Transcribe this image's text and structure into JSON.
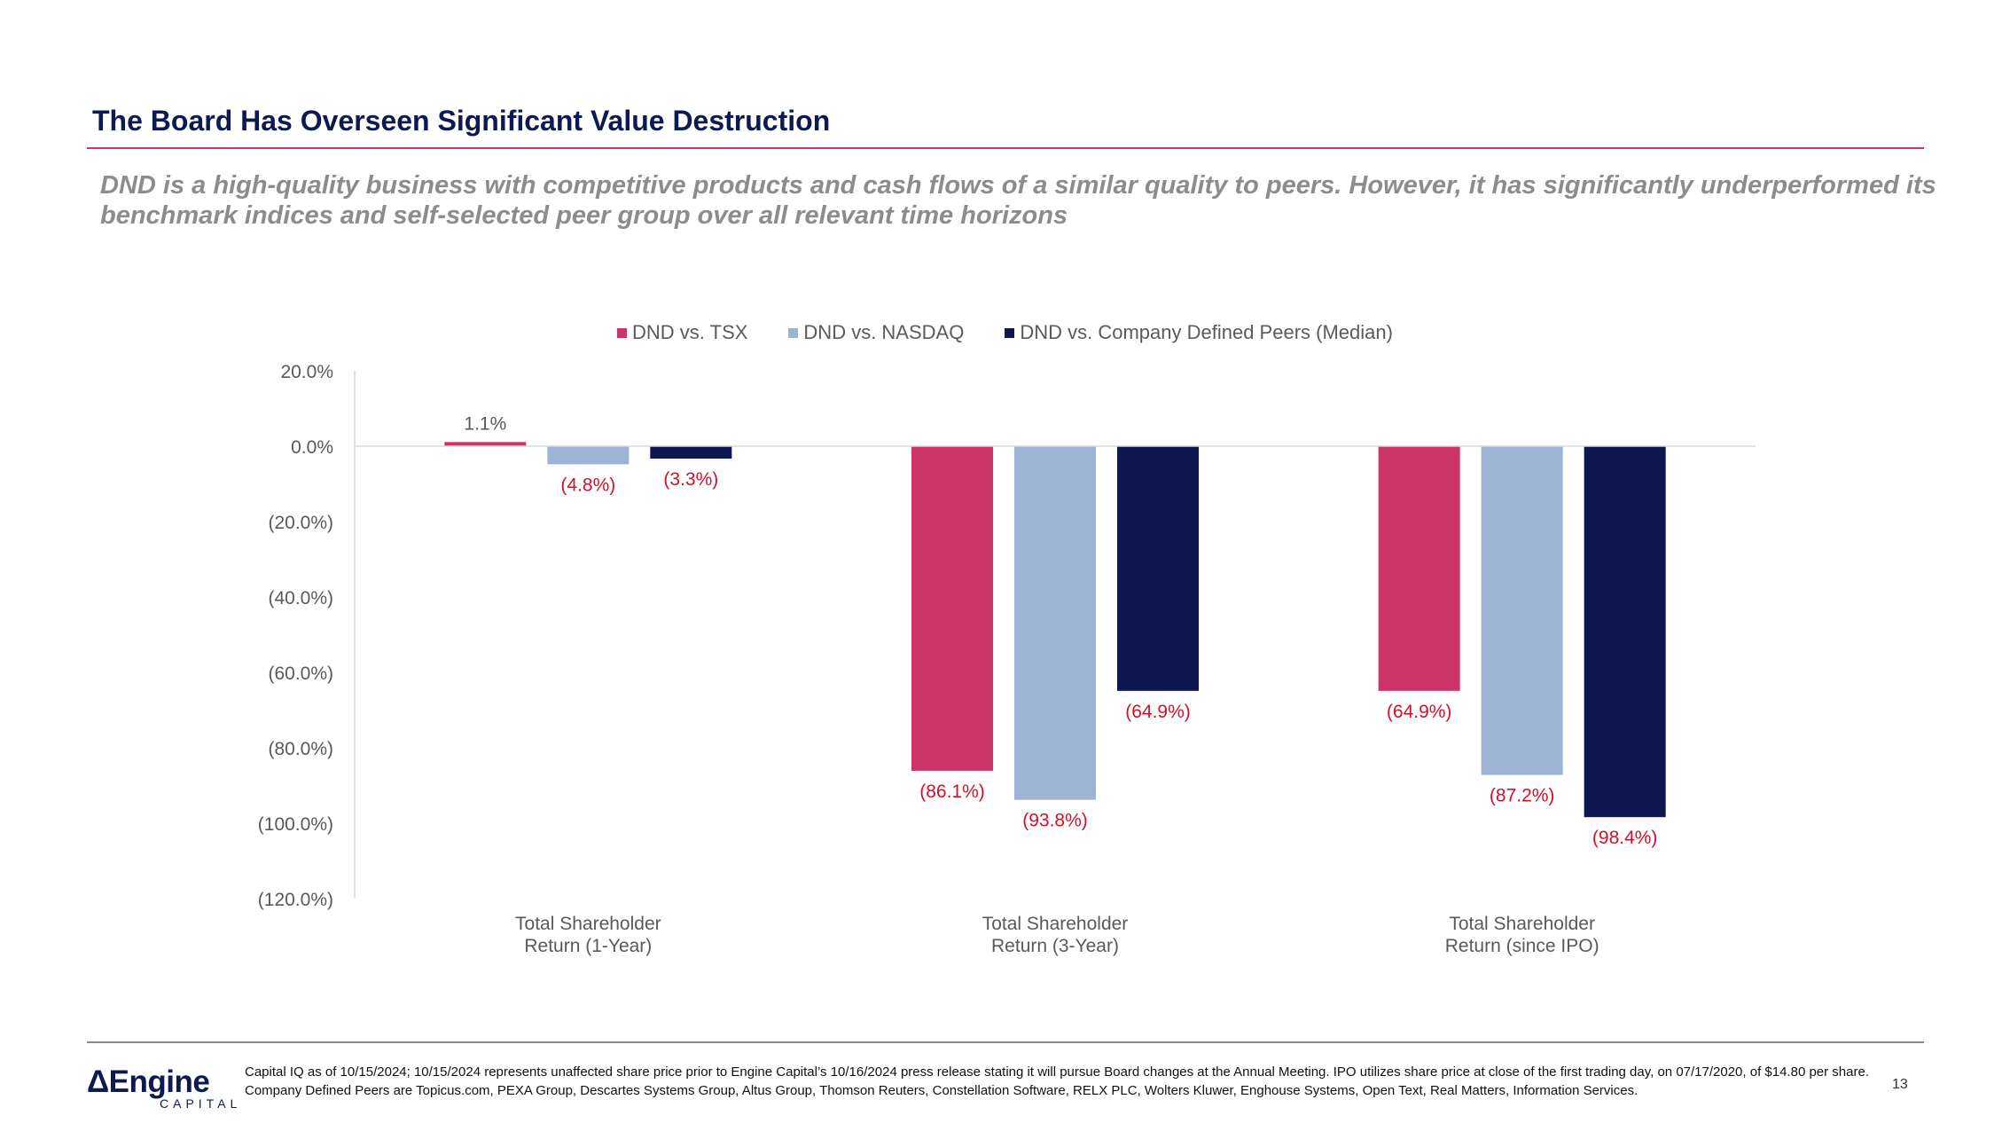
{
  "header": {
    "title": "The Board Has Overseen Significant Value Destruction",
    "subtitle": "DND is a high-quality business with competitive products and cash flows of a similar quality to peers. However, it has significantly underperformed its benchmark indices and self-selected peer group over all relevant time horizons"
  },
  "colors": {
    "accent": "#cc3366",
    "navy": "#0d1a52",
    "tsx": "#cc3366",
    "nasdaq": "#9db3d3",
    "peers": "#0e1650",
    "label_red": "#d0112b"
  },
  "chart_data": {
    "type": "bar",
    "categories": [
      [
        "Total Shareholder",
        "Return (1-Year)"
      ],
      [
        "Total Shareholder",
        "Return (3-Year)"
      ],
      [
        "Total Shareholder",
        "Return (since IPO)"
      ]
    ],
    "series": [
      {
        "name": "DND vs. TSX",
        "values": [
          1.1,
          -86.1,
          -64.9
        ],
        "labels": [
          "1.1%",
          "(86.1%)",
          "(64.9%)"
        ]
      },
      {
        "name": "DND vs. NASDAQ",
        "values": [
          -4.8,
          -93.8,
          -87.2
        ],
        "labels": [
          "(4.8%)",
          "(93.8%)",
          "(87.2%)"
        ]
      },
      {
        "name": "DND vs. Company Defined Peers (Median)",
        "values": [
          -3.3,
          -64.9,
          -98.4
        ],
        "labels": [
          "(3.3%)",
          "(64.9%)",
          "(98.4%)"
        ]
      }
    ],
    "ylim": [
      -120,
      20
    ],
    "yticks": [
      20,
      0,
      -20,
      -40,
      -60,
      -80,
      -100,
      -120
    ],
    "ytick_labels": [
      "20.0%",
      "0.0%",
      "(20.0%)",
      "(40.0%)",
      "(60.0%)",
      "(80.0%)",
      "(100.0%)",
      "(120.0%)"
    ],
    "legend_position": "top-center",
    "grid": false
  },
  "footer": {
    "logo_main": "ΔEngine",
    "logo_sub": "CAPITAL",
    "note": "Capital IQ as of 10/15/2024; 10/15/2024 represents unaffected share price prior to Engine Capital’s 10/16/2024 press release stating it will pursue Board changes at the Annual Meeting. IPO utilizes share price at close of the first trading day, on 07/17/2020, of $14.80 per share. Company Defined Peers are Topicus.com, PEXA Group, Descartes Systems Group, Altus Group, Thomson Reuters, Constellation Software, RELX PLC, Wolters Kluwer, Enghouse Systems, Open Text, Real Matters, Information Services.",
    "page_number": "13"
  }
}
